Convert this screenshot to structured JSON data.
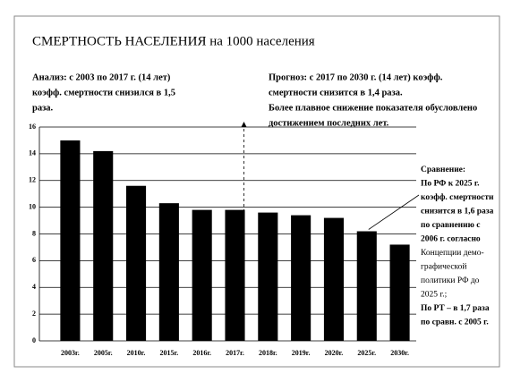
{
  "chart_data": {
    "type": "bar",
    "title": "СМЕРТНОСТЬ НАСЕЛЕНИЯ на 1000 населения",
    "annotation_left": [
      "Анализ: с 2003 по 2017 г. (14 лет)",
      "коэфф. смертности снизился в 1,5",
      "раза."
    ],
    "annotation_right": [
      "Прогноз: с 2017 по 2030 г. (14 лет) коэфф.",
      "смертности снизится в 1,4 раза.",
      "Более плавное снижение показателя обусловлено",
      "достижением последних лет."
    ],
    "comparison_note": [
      "Сравнение:",
      "По РФ к 2025 г.",
      "коэфф. смертности",
      "снизится в 1,6 раза",
      "по сравнению с",
      "2006 г. согласно",
      "Концепции демо-",
      "графической",
      "политики РФ до",
      "2025 г.;",
      "По РТ – в 1,7 раза",
      "по сравн. с 2005 г."
    ],
    "categories": [
      "2003г.",
      "2005г.",
      "2010г.",
      "2015г.",
      "2016г.",
      "2017г.",
      "2018г.",
      "2019г.",
      "2020г.",
      "2025г.",
      "2030г."
    ],
    "values": [
      15.0,
      14.2,
      11.6,
      10.3,
      9.8,
      9.8,
      9.6,
      9.4,
      9.2,
      8.2,
      7.2
    ],
    "color": "#000000",
    "ylim": [
      0,
      16
    ],
    "yticks": [
      0,
      2,
      4,
      6,
      8,
      10,
      12,
      14,
      16
    ],
    "grid": true
  }
}
